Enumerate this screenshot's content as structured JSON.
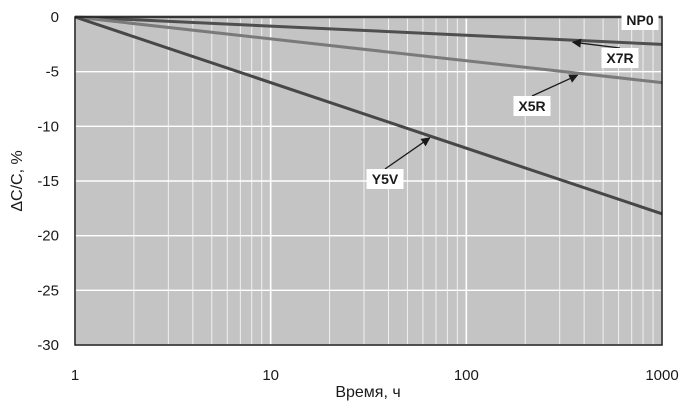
{
  "chart_data": {
    "type": "line",
    "x_scale": "log",
    "xlabel": "Время, ч",
    "ylabel": "ΔC/C, %",
    "xlim": [
      1,
      1000
    ],
    "ylim": [
      -30,
      0
    ],
    "x_ticks": [
      1,
      10,
      100,
      1000
    ],
    "x_tick_labels": [
      "1",
      "10",
      "100",
      "1000"
    ],
    "y_ticks": [
      0,
      -5,
      -10,
      -15,
      -20,
      -25,
      -30
    ],
    "y_tick_labels": [
      "0",
      "-5",
      "-10",
      "-15",
      "-20",
      "-25",
      "-30"
    ],
    "grid": true,
    "series": [
      {
        "name": "NP0",
        "color": "#8c8c8c",
        "x": [
          1,
          1000
        ],
        "y": [
          0,
          0
        ]
      },
      {
        "name": "X7R",
        "color": "#4f4f4f",
        "x": [
          1,
          1000
        ],
        "y": [
          0,
          -2.5
        ]
      },
      {
        "name": "X5R",
        "color": "#7a7a7a",
        "x": [
          1,
          1000
        ],
        "y": [
          0,
          -6
        ]
      },
      {
        "name": "Y5V",
        "color": "#474747",
        "x": [
          1,
          1000
        ],
        "y": [
          0,
          -18
        ]
      }
    ],
    "annotations": [
      {
        "text": "NP0",
        "series": "NP0"
      },
      {
        "text": "X7R",
        "series": "X7R",
        "arrow_to_x": 350
      },
      {
        "text": "X5R",
        "series": "X5R",
        "arrow_to_x": 370
      },
      {
        "text": "Y5V",
        "series": "Y5V",
        "arrow_to_x": 65
      }
    ]
  }
}
